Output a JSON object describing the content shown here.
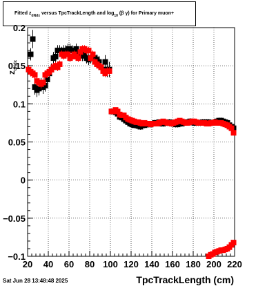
{
  "title": {
    "prefix": "Fitted",
    "z": "z",
    "z_sub": "dNdx",
    "middle": "versus TpcTrackLength and log",
    "log_sub": "10",
    "beta_gamma": "(β γ)",
    "suffix": "for Primary muon+"
  },
  "ylabel_main": "z",
  "ylabel_sub": "dNdx",
  "timestamp": "Sat Jun 28 13:48:48 2025",
  "colors": {
    "black_series": "#000000",
    "red_series": "#ff0000",
    "grid": "#000000"
  },
  "chart_data": {
    "type": "scatter",
    "title": "Fitted z_dNdx versus TpcTrackLength and log_10 (β γ) for Primary muon+",
    "xlabel": "TpcTrackLength (cm)",
    "ylabel": "z_dNdx",
    "xlim": [
      20,
      220
    ],
    "ylim": [
      -0.1,
      0.2
    ],
    "grid": true,
    "x_ticks": [
      20,
      40,
      60,
      80,
      100,
      120,
      140,
      160,
      180,
      200,
      220
    ],
    "x_tick_labels": [
      "20",
      "40",
      "60",
      "80",
      "100",
      "120",
      "140",
      "160",
      "180",
      "200",
      "220"
    ],
    "y_ticks": [
      -0.1,
      -0.05,
      0,
      0.05,
      0.1,
      0.15,
      0.2
    ],
    "y_tick_labels": [
      "−0.1",
      "−0.05",
      "0",
      "0.05",
      "0.1",
      "0.15",
      "0.2"
    ],
    "series": [
      {
        "color": "#000000",
        "x": [
          23,
          25,
          27,
          29,
          31,
          33,
          35,
          37,
          39,
          41,
          43,
          45,
          47,
          49,
          51,
          53,
          55,
          57,
          59,
          61,
          63,
          65,
          67,
          69,
          71,
          73,
          75,
          77,
          79,
          81,
          83,
          85,
          87,
          89,
          91,
          93,
          95,
          97,
          99,
          101,
          103,
          105,
          107,
          109,
          111,
          113,
          115,
          117,
          119,
          121,
          123,
          125,
          127,
          129,
          131,
          133,
          135,
          137,
          139,
          141,
          143,
          145,
          147,
          149,
          151,
          153,
          155,
          157,
          159,
          161,
          163,
          165,
          167,
          169,
          171,
          173,
          175,
          177,
          179,
          181,
          183,
          185,
          187,
          189,
          191,
          193,
          195,
          197,
          199,
          201,
          203,
          205,
          207,
          209,
          211,
          213,
          215,
          217,
          219
        ],
        "y": [
          0.165,
          0.185,
          0.122,
          0.118,
          0.12,
          0.126,
          0.122,
          0.124,
          0.132,
          0.14,
          0.145,
          0.16,
          0.162,
          0.17,
          0.17,
          0.168,
          0.17,
          0.17,
          0.172,
          0.172,
          0.17,
          0.168,
          0.172,
          0.166,
          0.165,
          0.163,
          0.166,
          0.16,
          0.158,
          0.16,
          0.162,
          0.16,
          0.158,
          0.155,
          0.148,
          0.145,
          0.155,
          0.145,
          0.145,
          0.09,
          0.09,
          0.089,
          0.087,
          0.083,
          0.082,
          0.08,
          0.078,
          0.076,
          0.074,
          0.073,
          0.072,
          0.072,
          0.071,
          0.07,
          0.072,
          0.072,
          0.073,
          0.073,
          0.073,
          0.074,
          0.075,
          0.075,
          0.076,
          0.074,
          0.074,
          0.075,
          0.075,
          0.076,
          0.074,
          0.074,
          0.073,
          0.073,
          0.074,
          0.074,
          0.075,
          0.076,
          0.076,
          0.077,
          0.076,
          0.075,
          0.075,
          0.075,
          0.075,
          0.076,
          0.076,
          0.076,
          0.076,
          0.075,
          0.075,
          0.076,
          0.077,
          0.078,
          0.078,
          0.077,
          0.076,
          0.075,
          0.072,
          0.07,
          0.068
        ],
        "err": [
          0.008,
          0.012,
          0.01,
          0.009,
          0.009,
          0.008,
          0.009,
          0.008,
          0.009,
          0.008,
          0.008,
          0.008,
          0.007,
          0.007,
          0.007,
          0.007,
          0.007,
          0.007,
          0.007,
          0.007,
          0.007,
          0.007,
          0.007,
          0.007,
          0.007,
          0.007,
          0.007,
          0.007,
          0.007,
          0.007,
          0.007,
          0.007,
          0.007,
          0.008,
          0.008,
          0.009,
          0.009,
          0.01,
          0.01,
          0.004,
          0.004,
          0.004,
          0.004,
          0.004,
          0.004,
          0.004,
          0.004,
          0.004,
          0.004,
          0.004,
          0.004,
          0.004,
          0.004,
          0.004,
          0.004,
          0.004,
          0.004,
          0.004,
          0.004,
          0.004,
          0.004,
          0.004,
          0.004,
          0.004,
          0.004,
          0.004,
          0.004,
          0.004,
          0.004,
          0.004,
          0.004,
          0.004,
          0.004,
          0.004,
          0.004,
          0.004,
          0.004,
          0.004,
          0.004,
          0.004,
          0.004,
          0.004,
          0.004,
          0.004,
          0.004,
          0.004,
          0.004,
          0.004,
          0.004,
          0.004,
          0.004,
          0.004,
          0.004,
          0.004,
          0.004,
          0.004,
          0.004,
          0.004,
          0.004
        ]
      },
      {
        "color": "#ff0000",
        "x": [
          21,
          23,
          25,
          27,
          29,
          31,
          33,
          35,
          37,
          39,
          41,
          43,
          45,
          47,
          49,
          51,
          53,
          55,
          57,
          59,
          61,
          63,
          65,
          67,
          69,
          71,
          73,
          75,
          77,
          79,
          81,
          83,
          85,
          87,
          89,
          91,
          93,
          95,
          97,
          99,
          101,
          103,
          105,
          107,
          109,
          111,
          113,
          115,
          117,
          119,
          121,
          123,
          125,
          127,
          129,
          131,
          133,
          135,
          137,
          139,
          141,
          143,
          145,
          147,
          149,
          151,
          153,
          155,
          157,
          159,
          161,
          163,
          165,
          167,
          169,
          171,
          173,
          175,
          177,
          179,
          181,
          183,
          185,
          187,
          189,
          191,
          193,
          195,
          197,
          199,
          201,
          203,
          205,
          207,
          209,
          211,
          213,
          215,
          217,
          219
        ],
        "y": [
          0.145,
          0.142,
          0.14,
          0.138,
          0.13,
          0.128,
          0.126,
          0.128,
          0.138,
          0.14,
          0.142,
          0.145,
          0.148,
          0.15,
          0.148,
          0.152,
          0.165,
          0.163,
          0.165,
          0.165,
          0.16,
          0.162,
          0.165,
          0.162,
          0.16,
          0.168,
          0.172,
          0.172,
          0.17,
          0.17,
          0.16,
          0.165,
          0.155,
          0.152,
          0.15,
          0.148,
          0.143,
          0.14,
          0.143,
          0.143,
          0.09,
          0.09,
          0.092,
          0.09,
          0.086,
          0.085,
          0.085,
          0.082,
          0.08,
          0.079,
          0.078,
          0.077,
          0.076,
          0.076,
          0.075,
          0.074,
          0.075,
          0.074,
          0.074,
          0.073,
          0.074,
          0.074,
          0.074,
          0.075,
          0.076,
          0.077,
          0.076,
          0.075,
          0.075,
          0.074,
          0.075,
          0.076,
          0.077,
          0.078,
          0.077,
          0.076,
          0.075,
          0.075,
          0.076,
          0.077,
          0.077,
          0.076,
          0.075,
          0.075,
          0.075,
          0.075,
          0.074,
          0.074,
          0.075,
          0.075,
          0.076,
          0.075,
          0.075,
          0.075,
          0.074,
          0.073,
          0.072,
          0.07,
          0.068,
          0.062
        ],
        "err": [
          0.006,
          0.006,
          0.006,
          0.006,
          0.006,
          0.006,
          0.006,
          0.006,
          0.006,
          0.006,
          0.006,
          0.005,
          0.005,
          0.005,
          0.005,
          0.005,
          0.005,
          0.005,
          0.005,
          0.005,
          0.005,
          0.005,
          0.005,
          0.005,
          0.005,
          0.005,
          0.005,
          0.005,
          0.005,
          0.005,
          0.005,
          0.005,
          0.005,
          0.005,
          0.005,
          0.005,
          0.005,
          0.005,
          0.005,
          0.005,
          0.003,
          0.003,
          0.003,
          0.003,
          0.003,
          0.003,
          0.003,
          0.003,
          0.003,
          0.003,
          0.003,
          0.003,
          0.003,
          0.003,
          0.003,
          0.003,
          0.003,
          0.003,
          0.003,
          0.003,
          0.003,
          0.003,
          0.003,
          0.003,
          0.003,
          0.003,
          0.003,
          0.003,
          0.003,
          0.003,
          0.003,
          0.003,
          0.003,
          0.003,
          0.003,
          0.003,
          0.003,
          0.003,
          0.003,
          0.003,
          0.003,
          0.003,
          0.003,
          0.003,
          0.003,
          0.003,
          0.003,
          0.003,
          0.003,
          0.003,
          0.003,
          0.003,
          0.003,
          0.003,
          0.003,
          0.003,
          0.003,
          0.003,
          0.003,
          0.003
        ]
      },
      {
        "color": "#ff0000",
        "x": [
          195,
          197,
          199,
          201,
          203,
          205,
          207,
          209,
          211,
          213,
          215,
          217,
          219
        ],
        "y": [
          -0.1,
          -0.098,
          -0.097,
          -0.095,
          -0.094,
          -0.093,
          -0.092,
          -0.092,
          -0.091,
          -0.09,
          -0.088,
          -0.085,
          -0.082
        ],
        "err": [
          0.003,
          0.003,
          0.003,
          0.003,
          0.003,
          0.003,
          0.003,
          0.003,
          0.003,
          0.003,
          0.003,
          0.003,
          0.003
        ]
      }
    ]
  }
}
